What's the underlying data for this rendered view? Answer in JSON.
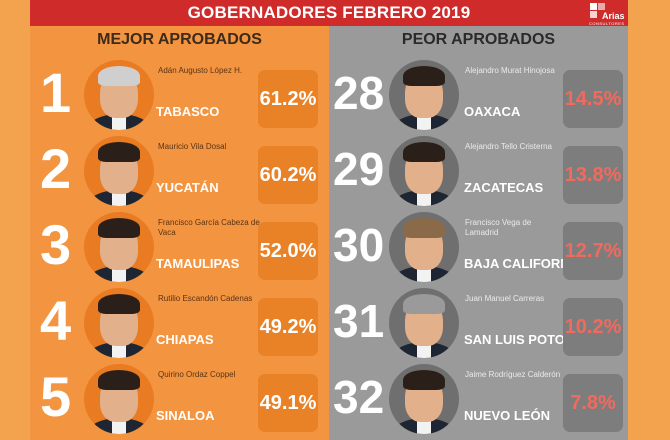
{
  "header": {
    "title": "GOBERNADORES FEBRERO 2019",
    "brand": "Arias",
    "brand_sub": "CONSULTORES"
  },
  "best": {
    "heading": "MEJOR APROBADOS",
    "items": [
      {
        "rank": "1",
        "name": "Adán Augusto López H.",
        "state": "TABASCO",
        "percent": "61.2%"
      },
      {
        "rank": "2",
        "name": "Mauricio Vila Dosal",
        "state": "YUCATÁN",
        "percent": "60.2%"
      },
      {
        "rank": "3",
        "name": "Francisco García Cabeza de Vaca",
        "state": "TAMAULIPAS",
        "percent": "52.0%"
      },
      {
        "rank": "4",
        "name": "Rutilio Escandón Cadenas",
        "state": "CHIAPAS",
        "percent": "49.2%"
      },
      {
        "rank": "5",
        "name": "Quirino Ordaz Coppel",
        "state": "SINALOA",
        "percent": "49.1%"
      }
    ]
  },
  "worst": {
    "heading": "PEOR APROBADOS",
    "items": [
      {
        "rank": "28",
        "name": "Alejandro Murat Hinojosa",
        "state": "OAXACA",
        "percent": "14.5%"
      },
      {
        "rank": "29",
        "name": "Alejandro Tello Cristerna",
        "state": "ZACATECAS",
        "percent": "13.8%"
      },
      {
        "rank": "30",
        "name": "Francisco Vega de Lamadrid",
        "state": "BAJA CALIFORNIA",
        "percent": "12.7%"
      },
      {
        "rank": "31",
        "name": "Juan Manuel Carreras",
        "state": "SAN LUIS POTOSÍ",
        "percent": "10.2%"
      },
      {
        "rank": "32",
        "name": "Jaime Rodríguez Calderón",
        "state": "NUEVO LEÓN",
        "percent": "7.8%"
      }
    ]
  }
}
